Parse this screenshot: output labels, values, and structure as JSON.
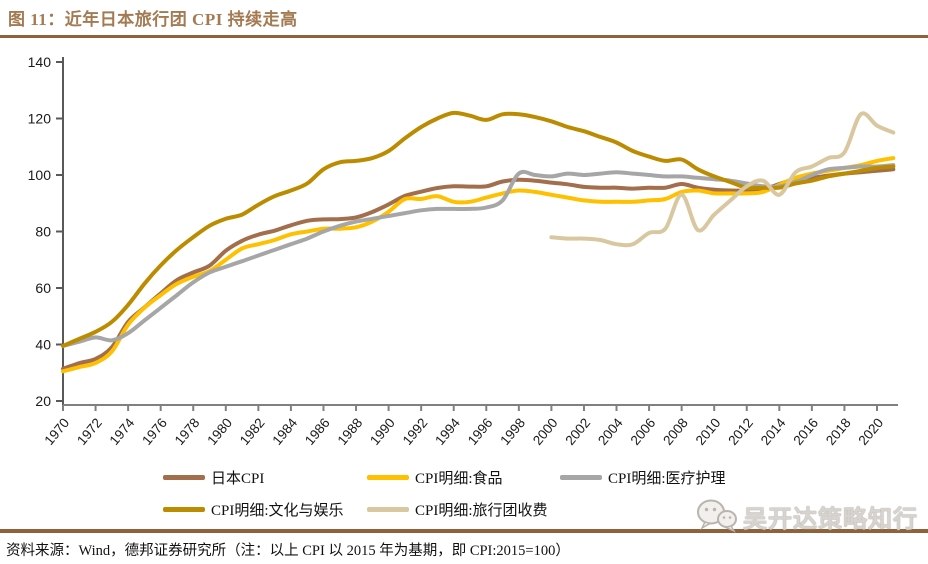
{
  "figure": {
    "title": "图 11：近年日本旅行团 CPI 持续走高",
    "source_note": "资料来源：Wind，德邦证券研究所（注：以上 CPI 以 2015 年为基期，即 CPI:2015=100）",
    "watermark": "吴开达策略知行"
  },
  "colors": {
    "title_text": "#A47A52",
    "divider_rule": "#8F6239",
    "y_axis": "#595959",
    "x_axis": "#808080",
    "tick_label": "#1a1a1a",
    "watermark_gray": "#d7d4cf"
  },
  "chart_data": {
    "type": "line",
    "title": "近年日本旅行团 CPI 持续走高",
    "xlabel": "",
    "ylabel": "",
    "ylim": [
      20,
      140
    ],
    "y_ticks": [
      20,
      40,
      60,
      80,
      100,
      120,
      140
    ],
    "x_start": 1970,
    "x_end": 2021,
    "x_tick_labels": [
      1970,
      1972,
      1974,
      1976,
      1978,
      1980,
      1982,
      1984,
      1986,
      1988,
      1990,
      1992,
      1994,
      1996,
      1998,
      2000,
      2002,
      2004,
      2006,
      2008,
      2010,
      2012,
      2014,
      2016,
      2018,
      2020
    ],
    "grid": false,
    "legend_position": "bottom",
    "legend_rows": [
      [
        0,
        1,
        2
      ],
      [
        3,
        4
      ]
    ],
    "series": [
      {
        "key": "japan-cpi",
        "name": "日本CPI",
        "color": "#A26E4B",
        "start_year": 1970,
        "values": [
          31.4,
          33.4,
          34.9,
          39.0,
          48.0,
          53.1,
          58.1,
          62.8,
          65.5,
          67.9,
          73.2,
          76.7,
          78.9,
          80.3,
          82.2,
          83.8,
          84.3,
          84.4,
          85.0,
          86.9,
          89.6,
          92.6,
          94.1,
          95.4,
          96.0,
          95.9,
          96.0,
          97.7,
          98.3,
          98.0,
          97.3,
          96.7,
          95.8,
          95.5,
          95.5,
          95.2,
          95.5,
          95.5,
          96.8,
          95.5,
          94.8,
          94.5,
          94.5,
          94.9,
          96.8,
          98.5,
          99.0,
          99.8,
          100.5,
          101.0,
          101.5,
          102.0
        ]
      },
      {
        "key": "cpi-food",
        "name": "CPI明细:食品",
        "color": "#FFC000",
        "start_year": 1970,
        "values": [
          30.5,
          32.0,
          33.5,
          37.5,
          47.0,
          53.0,
          57.5,
          61.5,
          64.0,
          66.0,
          70.0,
          74.0,
          75.5,
          77.0,
          79.0,
          80.0,
          81.0,
          81.0,
          81.5,
          83.5,
          87.0,
          91.5,
          91.5,
          92.5,
          90.5,
          90.5,
          92.0,
          93.5,
          94.5,
          94.0,
          93.0,
          92.0,
          91.0,
          90.5,
          90.5,
          90.5,
          91.0,
          91.5,
          94.0,
          94.5,
          93.5,
          93.5,
          93.5,
          94.0,
          96.5,
          99.0,
          100.5,
          101.5,
          102.5,
          103.5,
          105.0,
          106.0
        ]
      },
      {
        "key": "cpi-medical",
        "name": "CPI明细:医疗护理",
        "color": "#A6A6A6",
        "start_year": 1970,
        "values": [
          39.5,
          41.0,
          42.5,
          41.5,
          44.0,
          48.5,
          53.0,
          57.5,
          62.0,
          65.5,
          67.5,
          69.5,
          71.5,
          73.5,
          75.5,
          77.5,
          80.0,
          82.0,
          83.5,
          84.5,
          85.5,
          86.5,
          87.5,
          88.0,
          88.0,
          88.0,
          88.5,
          91.0,
          100.5,
          100.0,
          99.5,
          100.5,
          100.0,
          100.5,
          101.0,
          100.5,
          100.0,
          99.5,
          99.5,
          99.0,
          98.5,
          98.0,
          97.0,
          96.0,
          96.0,
          97.5,
          100.0,
          102.0,
          102.5,
          103.0,
          103.0,
          103.5
        ]
      },
      {
        "key": "cpi-culture",
        "name": "CPI明细:文化与娱乐",
        "color": "#BC8C00",
        "start_year": 1970,
        "values": [
          39.5,
          42.0,
          44.5,
          48.0,
          54.0,
          61.5,
          68.0,
          73.5,
          78.0,
          82.0,
          84.5,
          86.0,
          89.5,
          92.5,
          94.5,
          97.0,
          102.0,
          104.5,
          105.0,
          106.0,
          108.5,
          113.0,
          117.0,
          120.0,
          122.0,
          121.0,
          119.5,
          121.5,
          121.5,
          120.5,
          119.0,
          117.0,
          115.5,
          113.5,
          111.5,
          108.5,
          106.5,
          105.0,
          105.5,
          102.0,
          99.5,
          97.5,
          95.5,
          95.5,
          95.5,
          97.0,
          98.0,
          99.5,
          100.5,
          101.5,
          102.5,
          103.0
        ]
      },
      {
        "key": "cpi-travel",
        "name": "CPI明细:旅行团收费",
        "color": "#D9C89F",
        "start_year": 2000,
        "values": [
          78.0,
          77.5,
          77.5,
          77.0,
          75.5,
          75.5,
          79.5,
          81.0,
          93.0,
          80.5,
          86.0,
          91.0,
          96.0,
          98.0,
          93.0,
          101.0,
          103.0,
          106.0,
          108.0,
          121.5,
          117.5,
          115.0
        ]
      }
    ]
  }
}
